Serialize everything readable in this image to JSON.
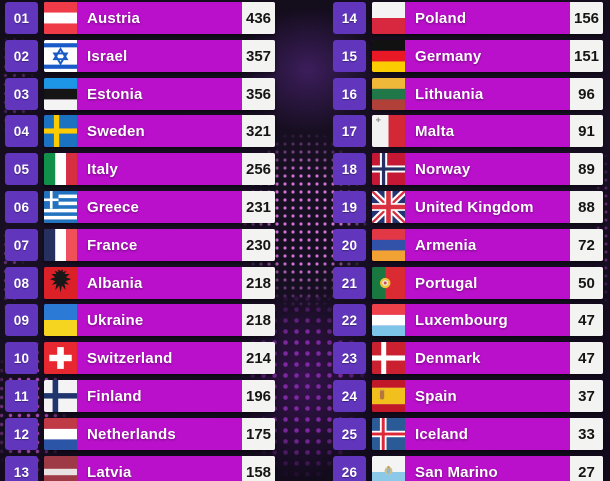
{
  "chart_data": {
    "type": "table",
    "columns": [
      "rank",
      "country",
      "score"
    ],
    "rows": [
      [
        "01",
        "Austria",
        436
      ],
      [
        "02",
        "Israel",
        357
      ],
      [
        "03",
        "Estonia",
        356
      ],
      [
        "04",
        "Sweden",
        321
      ],
      [
        "05",
        "Italy",
        256
      ],
      [
        "06",
        "Greece",
        231
      ],
      [
        "07",
        "France",
        230
      ],
      [
        "08",
        "Albania",
        218
      ],
      [
        "09",
        "Ukraine",
        218
      ],
      [
        "10",
        "Switzerland",
        214
      ],
      [
        "11",
        "Finland",
        196
      ],
      [
        "12",
        "Netherlands",
        175
      ],
      [
        "13",
        "Latvia",
        158
      ],
      [
        "14",
        "Poland",
        156
      ],
      [
        "15",
        "Germany",
        151
      ],
      [
        "16",
        "Lithuania",
        96
      ],
      [
        "17",
        "Malta",
        91
      ],
      [
        "18",
        "Norway",
        89
      ],
      [
        "19",
        "United Kingdom",
        88
      ],
      [
        "20",
        "Armenia",
        72
      ],
      [
        "21",
        "Portugal",
        50
      ],
      [
        "22",
        "Luxembourg",
        47
      ],
      [
        "23",
        "Denmark",
        47
      ],
      [
        "24",
        "Spain",
        37
      ],
      [
        "25",
        "Iceland",
        33
      ],
      [
        "26",
        "San Marino",
        27
      ]
    ]
  },
  "colors": {
    "bar": "#ba10cb",
    "rank_box": "#6136bd",
    "score_box": "#f3f3f2",
    "score_text": "#151515",
    "background": "#140d1d",
    "dots_accent": "#e473e8"
  },
  "scoreboard": {
    "columns": [
      {
        "rows": [
          {
            "rank": "01",
            "country": "Austria",
            "score": "436",
            "flag": "austria"
          },
          {
            "rank": "02",
            "country": "Israel",
            "score": "357",
            "flag": "israel"
          },
          {
            "rank": "03",
            "country": "Estonia",
            "score": "356",
            "flag": "estonia"
          },
          {
            "rank": "04",
            "country": "Sweden",
            "score": "321",
            "flag": "sweden"
          },
          {
            "rank": "05",
            "country": "Italy",
            "score": "256",
            "flag": "italy"
          },
          {
            "rank": "06",
            "country": "Greece",
            "score": "231",
            "flag": "greece"
          },
          {
            "rank": "07",
            "country": "France",
            "score": "230",
            "flag": "france"
          },
          {
            "rank": "08",
            "country": "Albania",
            "score": "218",
            "flag": "albania"
          },
          {
            "rank": "09",
            "country": "Ukraine",
            "score": "218",
            "flag": "ukraine"
          },
          {
            "rank": "10",
            "country": "Switzerland",
            "score": "214",
            "flag": "switzerland"
          },
          {
            "rank": "11",
            "country": "Finland",
            "score": "196",
            "flag": "finland"
          },
          {
            "rank": "12",
            "country": "Netherlands",
            "score": "175",
            "flag": "netherlands"
          },
          {
            "rank": "13",
            "country": "Latvia",
            "score": "158",
            "flag": "latvia"
          }
        ]
      },
      {
        "rows": [
          {
            "rank": "14",
            "country": "Poland",
            "score": "156",
            "flag": "poland"
          },
          {
            "rank": "15",
            "country": "Germany",
            "score": "151",
            "flag": "germany"
          },
          {
            "rank": "16",
            "country": "Lithuania",
            "score": "96",
            "flag": "lithuania"
          },
          {
            "rank": "17",
            "country": "Malta",
            "score": "91",
            "flag": "malta"
          },
          {
            "rank": "18",
            "country": "Norway",
            "score": "89",
            "flag": "norway"
          },
          {
            "rank": "19",
            "country": "United Kingdom",
            "score": "88",
            "flag": "uk"
          },
          {
            "rank": "20",
            "country": "Armenia",
            "score": "72",
            "flag": "armenia"
          },
          {
            "rank": "21",
            "country": "Portugal",
            "score": "50",
            "flag": "portugal"
          },
          {
            "rank": "22",
            "country": "Luxembourg",
            "score": "47",
            "flag": "luxembourg"
          },
          {
            "rank": "23",
            "country": "Denmark",
            "score": "47",
            "flag": "denmark"
          },
          {
            "rank": "24",
            "country": "Spain",
            "score": "37",
            "flag": "spain"
          },
          {
            "rank": "25",
            "country": "Iceland",
            "score": "33",
            "flag": "iceland"
          },
          {
            "rank": "26",
            "country": "San Marino",
            "score": "27",
            "flag": "sanmarino"
          }
        ]
      }
    ]
  },
  "flags": {
    "austria": [
      {
        "r": [
          0,
          0,
          100,
          100,
          "#ffffff"
        ]
      },
      {
        "r": [
          0,
          0,
          100,
          33,
          "#ef3b47"
        ]
      },
      {
        "r": [
          0,
          67,
          100,
          33,
          "#ef3b47"
        ]
      }
    ],
    "israel": [
      {
        "r": [
          0,
          0,
          100,
          100,
          "#ffffff"
        ]
      },
      {
        "r": [
          0,
          10,
          100,
          13,
          "#1a5ac8"
        ]
      },
      {
        "r": [
          0,
          77,
          100,
          13,
          "#1a5ac8"
        ]
      },
      {
        "d": [
          "M50 28 L69 60 L31 60 Z",
          "#1a5ac8",
          6
        ]
      },
      {
        "d": [
          "M50 74 L31 42 L69 42 Z",
          "#1a5ac8",
          6
        ]
      }
    ],
    "estonia": [
      {
        "r": [
          0,
          0,
          100,
          34,
          "#1e96e8"
        ]
      },
      {
        "r": [
          0,
          34,
          100,
          33,
          "#151515"
        ]
      },
      {
        "r": [
          0,
          67,
          100,
          33,
          "#f4f4f4"
        ]
      }
    ],
    "sweden": [
      {
        "r": [
          0,
          0,
          100,
          100,
          "#1a72c0"
        ]
      },
      {
        "r": [
          30,
          0,
          16,
          100,
          "#fecb00"
        ]
      },
      {
        "r": [
          0,
          42,
          100,
          16,
          "#fecb00"
        ]
      }
    ],
    "italy": [
      {
        "r": [
          0,
          0,
          34,
          100,
          "#109048"
        ]
      },
      {
        "r": [
          34,
          0,
          33,
          100,
          "#ffffff"
        ]
      },
      {
        "r": [
          67,
          0,
          33,
          100,
          "#d63040"
        ]
      }
    ],
    "greece": [
      {
        "r": [
          0,
          0,
          100,
          100,
          "#ffffff"
        ]
      },
      {
        "r": [
          0,
          0,
          100,
          11.1,
          "#2272c0"
        ]
      },
      {
        "r": [
          0,
          22.2,
          100,
          11.1,
          "#2272c0"
        ]
      },
      {
        "r": [
          0,
          44.4,
          100,
          11.2,
          "#2272c0"
        ]
      },
      {
        "r": [
          0,
          66.7,
          100,
          11.1,
          "#2272c0"
        ]
      },
      {
        "r": [
          0,
          88.9,
          100,
          11.1,
          "#2272c0"
        ]
      },
      {
        "r": [
          0,
          0,
          44,
          55.5,
          "#2272c0"
        ]
      },
      {
        "r": [
          18,
          0,
          8,
          55.5,
          "#ffffff"
        ]
      },
      {
        "r": [
          0,
          23.5,
          44,
          8,
          "#ffffff"
        ]
      }
    ],
    "france": [
      {
        "r": [
          0,
          0,
          34,
          100,
          "#26305e"
        ]
      },
      {
        "r": [
          34,
          0,
          33,
          100,
          "#ffffff"
        ]
      },
      {
        "r": [
          67,
          0,
          33,
          100,
          "#f05058"
        ]
      }
    ],
    "albania": [
      {
        "r": [
          0,
          0,
          100,
          100,
          "#dc2028"
        ]
      },
      {
        "d": [
          "M50 12 L42 8 L44 16 L32 12 L38 22 L22 22 L34 32 L18 38 L34 44 L24 56 L38 52 L34 72 L46 58 L50 80 L54 58 L66 72 L62 52 L76 56 L66 44 L82 38 L66 32 L78 22 L62 22 L68 12 L56 16 L58 8 Z",
          "#181818"
        ]
      }
    ],
    "ukraine": [
      {
        "r": [
          0,
          0,
          100,
          50,
          "#2b7ad6"
        ]
      },
      {
        "r": [
          0,
          50,
          100,
          50,
          "#f6d520"
        ]
      }
    ],
    "switzerland": [
      {
        "r": [
          0,
          0,
          100,
          100,
          "#e82830"
        ]
      },
      {
        "r": [
          40,
          16,
          20,
          68,
          "#ffffff"
        ]
      },
      {
        "r": [
          16,
          40,
          68,
          20,
          "#ffffff"
        ]
      }
    ],
    "finland": [
      {
        "r": [
          0,
          0,
          100,
          100,
          "#f4f4f4"
        ]
      },
      {
        "r": [
          26,
          0,
          17,
          100,
          "#20356e"
        ]
      },
      {
        "r": [
          0,
          41,
          100,
          17,
          "#20356e"
        ]
      }
    ],
    "netherlands": [
      {
        "r": [
          0,
          0,
          100,
          34,
          "#bf3a45"
        ]
      },
      {
        "r": [
          0,
          34,
          100,
          33,
          "#ffffff"
        ]
      },
      {
        "r": [
          0,
          67,
          100,
          33,
          "#2b55a7"
        ]
      }
    ],
    "latvia": [
      {
        "r": [
          0,
          0,
          100,
          100,
          "#9e3a46"
        ]
      },
      {
        "r": [
          0,
          40,
          100,
          20,
          "#e9e2e2"
        ]
      }
    ],
    "poland": [
      {
        "r": [
          0,
          0,
          100,
          50,
          "#f4f4f4"
        ]
      },
      {
        "r": [
          0,
          50,
          100,
          50,
          "#d82840"
        ]
      }
    ],
    "germany": [
      {
        "r": [
          0,
          0,
          100,
          34,
          "#111111"
        ]
      },
      {
        "r": [
          0,
          34,
          100,
          33,
          "#e81824"
        ]
      },
      {
        "r": [
          0,
          67,
          100,
          33,
          "#fbcc00"
        ]
      }
    ],
    "lithuania": [
      {
        "r": [
          0,
          0,
          100,
          34,
          "#f0b838"
        ]
      },
      {
        "r": [
          0,
          34,
          100,
          33,
          "#207848"
        ]
      },
      {
        "r": [
          0,
          67,
          100,
          33,
          "#b04038"
        ]
      }
    ],
    "malta": [
      {
        "r": [
          0,
          0,
          50,
          100,
          "#f2f2f2"
        ]
      },
      {
        "r": [
          50,
          0,
          50,
          100,
          "#d42836"
        ]
      },
      {
        "r": [
          17,
          8,
          4,
          14,
          "#999999"
        ]
      },
      {
        "r": [
          12,
          13,
          14,
          4,
          "#999999"
        ]
      }
    ],
    "norway": [
      {
        "r": [
          0,
          0,
          100,
          100,
          "#c41834"
        ]
      },
      {
        "r": [
          24,
          0,
          22,
          100,
          "#ffffff"
        ]
      },
      {
        "r": [
          0,
          39,
          100,
          22,
          "#ffffff"
        ]
      },
      {
        "r": [
          30,
          0,
          10,
          100,
          "#252f60"
        ]
      },
      {
        "r": [
          0,
          45,
          100,
          10,
          "#252f60"
        ]
      }
    ],
    "uk": [
      {
        "r": [
          0,
          0,
          100,
          100,
          "#253272"
        ]
      },
      {
        "l": [
          0,
          0,
          100,
          100,
          20,
          "#ffffff"
        ]
      },
      {
        "l": [
          100,
          0,
          0,
          100,
          20,
          "#ffffff"
        ]
      },
      {
        "l": [
          0,
          0,
          100,
          100,
          7,
          "#d83040"
        ]
      },
      {
        "l": [
          100,
          0,
          0,
          100,
          7,
          "#d83040"
        ]
      },
      {
        "r": [
          38,
          0,
          24,
          100,
          "#ffffff"
        ]
      },
      {
        "r": [
          0,
          38,
          100,
          24,
          "#ffffff"
        ]
      },
      {
        "r": [
          43,
          0,
          14,
          100,
          "#d83040"
        ]
      },
      {
        "r": [
          0,
          43,
          100,
          14,
          "#d83040"
        ]
      }
    ],
    "armenia": [
      {
        "r": [
          0,
          0,
          100,
          34,
          "#e23846"
        ]
      },
      {
        "r": [
          0,
          34,
          100,
          33,
          "#3152a8"
        ]
      },
      {
        "r": [
          0,
          67,
          100,
          33,
          "#f2a233"
        ]
      }
    ],
    "portugal": [
      {
        "r": [
          0,
          0,
          40,
          100,
          "#187840"
        ]
      },
      {
        "r": [
          40,
          0,
          60,
          100,
          "#da2a32"
        ]
      },
      {
        "c": [
          40,
          50,
          16,
          "#edc43c"
        ]
      },
      {
        "c": [
          40,
          50,
          9,
          "#f0ead8"
        ]
      },
      {
        "c": [
          40,
          50,
          4.5,
          "#c05060"
        ]
      }
    ],
    "luxembourg": [
      {
        "r": [
          0,
          0,
          100,
          34,
          "#ee4048"
        ]
      },
      {
        "r": [
          0,
          34,
          100,
          33,
          "#ffffff"
        ]
      },
      {
        "r": [
          0,
          67,
          100,
          33,
          "#7cc4e8"
        ]
      }
    ],
    "denmark": [
      {
        "r": [
          0,
          0,
          100,
          100,
          "#cb2030"
        ]
      },
      {
        "r": [
          28,
          0,
          15,
          100,
          "#ffffff"
        ]
      },
      {
        "r": [
          0,
          42,
          100,
          16,
          "#ffffff"
        ]
      }
    ],
    "spain": [
      {
        "r": [
          0,
          0,
          100,
          24,
          "#c01828"
        ]
      },
      {
        "r": [
          0,
          24,
          100,
          52,
          "#f2c01c"
        ]
      },
      {
        "r": [
          0,
          76,
          100,
          24,
          "#c01828"
        ]
      },
      {
        "r": [
          24,
          30,
          13,
          5,
          "#caa24a"
        ]
      },
      {
        "d": [
          "M24 34 h13 v20 q0 7 -6.5 7 q-6.5 0 -6.5 -7 Z",
          "#b5763f"
        ]
      }
    ],
    "iceland": [
      {
        "r": [
          0,
          0,
          100,
          100,
          "#2b5b96"
        ]
      },
      {
        "r": [
          24,
          0,
          20,
          100,
          "#ffffff"
        ]
      },
      {
        "r": [
          0,
          40,
          100,
          20,
          "#ffffff"
        ]
      },
      {
        "r": [
          29.5,
          0,
          9,
          100,
          "#dc2838"
        ]
      },
      {
        "r": [
          0,
          45.5,
          100,
          9,
          "#dc2838"
        ]
      }
    ],
    "sanmarino": [
      {
        "r": [
          0,
          0,
          100,
          50,
          "#f4f4f4"
        ]
      },
      {
        "r": [
          0,
          50,
          100,
          50,
          "#8cc8e8"
        ]
      },
      {
        "c": [
          50,
          46,
          12,
          "#cfc08a"
        ]
      },
      {
        "c": [
          50,
          35,
          4,
          "#caa24a"
        ]
      },
      {
        "d": [
          "M45 40 h10 v9 q0 6 -5 6 q-5 0 -5 -6 Z",
          "#8fb8d8"
        ]
      }
    ]
  }
}
